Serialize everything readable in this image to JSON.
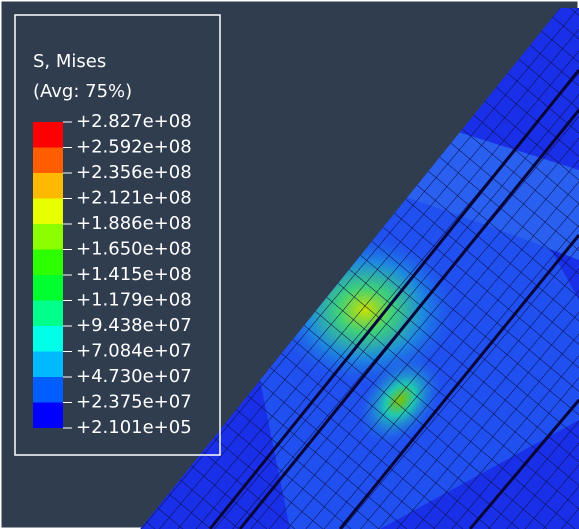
{
  "legend": {
    "title": "S, Mises",
    "subtitle": "(Avg: 75%)",
    "labels": [
      "+2.827e+08",
      "+2.592e+08",
      "+2.356e+08",
      "+2.121e+08",
      "+1.886e+08",
      "+1.650e+08",
      "+1.415e+08",
      "+1.179e+08",
      "+9.438e+07",
      "+7.084e+07",
      "+4.730e+07",
      "+2.375e+07",
      "+2.101e+05"
    ],
    "colors": [
      "#ff0000",
      "#ff5d00",
      "#ffb900",
      "#e8ff00",
      "#8bff00",
      "#2eff00",
      "#00ff2e",
      "#00ff8b",
      "#00ffe8",
      "#00b9ff",
      "#005dff",
      "#0000ff"
    ]
  }
}
